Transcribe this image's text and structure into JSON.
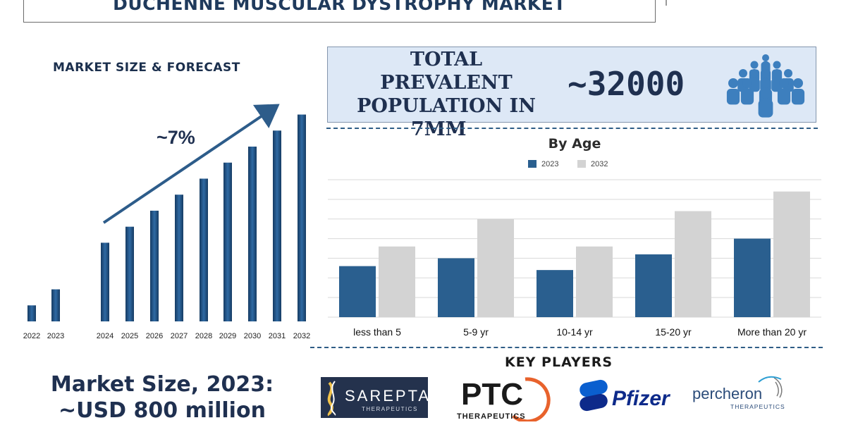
{
  "title": "DUCHENNE MUSCULAR DYSTROPHY MARKET",
  "left_panel": {
    "heading": "MARKET SIZE & FORECAST",
    "cagr_label": "~7%",
    "market_size_line1": "Market Size, 2023:",
    "market_size_line2": "~USD 800 million"
  },
  "prevalence": {
    "label_lines": [
      "TOTAL PREVALENT",
      "POPULATION IN",
      "7MM"
    ],
    "value": "~32000",
    "icon": "people-group-icon"
  },
  "key_players": {
    "heading": "KEY PLAYERS",
    "logos": [
      {
        "name": "SAREPTA",
        "sub": "THERAPEUTICS"
      },
      {
        "name": "PTC",
        "sub": "THERAPEUTICS"
      },
      {
        "name": "Pfizer",
        "sub": ""
      },
      {
        "name": "percheron",
        "sub": "THERAPEUTICS"
      }
    ]
  },
  "colors": {
    "bar_dark": "#1f4e7f",
    "bar_2023": "#2a5f8f",
    "bar_2032": "#d3d3d3",
    "title_text": "#1f3a5c",
    "accent_arrow": "#2d5c8a",
    "prev_box_bg": "#dde8f6"
  },
  "chart_data": [
    {
      "type": "bar",
      "title": "",
      "categories": [
        "2022",
        "2023",
        "2024",
        "2025",
        "2026",
        "2027",
        "2028",
        "2029",
        "2030",
        "2031",
        "2032"
      ],
      "values": [
        22,
        44,
        108,
        130,
        152,
        174,
        196,
        218,
        240,
        262,
        284
      ],
      "xlabel": "",
      "ylabel": "",
      "ylim": [
        0,
        300
      ],
      "grid": false,
      "annotation": "~7%"
    },
    {
      "type": "bar",
      "title": "By Age",
      "categories": [
        "less than 5",
        "5-9 yr",
        "10-14 yr",
        "15-20 yr",
        "More than 20 yr"
      ],
      "series": [
        {
          "name": "2023",
          "values": [
            2.6,
            3.0,
            2.4,
            3.2,
            4.0
          ]
        },
        {
          "name": "2032",
          "values": [
            3.6,
            5.0,
            3.6,
            5.4,
            6.4
          ]
        }
      ],
      "xlabel": "",
      "ylabel": "",
      "ylim": [
        0,
        7
      ],
      "grid": true,
      "legend": "top-center"
    }
  ]
}
